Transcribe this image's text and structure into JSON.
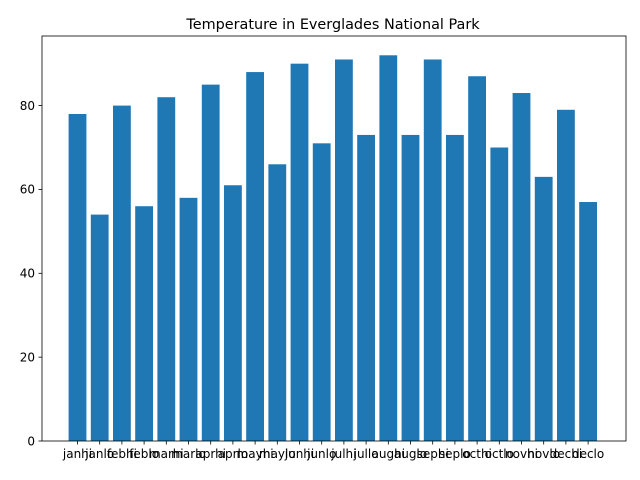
{
  "chart_data": {
    "type": "bar",
    "title": "Temperature in Everglades National Park",
    "xlabel": "",
    "ylabel": "",
    "categories": [
      "janhi",
      "janlo",
      "febhi",
      "feblo",
      "marhi",
      "marlo",
      "aprhi",
      "aprlo",
      "mayhi",
      "maylo",
      "junhi",
      "junlo",
      "julhi",
      "jullo",
      "aughi",
      "auglo",
      "sephi",
      "seplo",
      "octhi",
      "octlo",
      "novhi",
      "novlo",
      "dechi",
      "declo"
    ],
    "values": [
      78,
      54,
      80,
      56,
      82,
      58,
      85,
      61,
      88,
      66,
      90,
      71,
      91,
      73,
      92,
      73,
      91,
      73,
      87,
      70,
      83,
      63,
      79,
      57
    ],
    "ylim": [
      0,
      96.6
    ],
    "yticks": [
      0,
      20,
      40,
      60,
      80
    ],
    "grid": false,
    "bar_color": "#1f77b4"
  }
}
